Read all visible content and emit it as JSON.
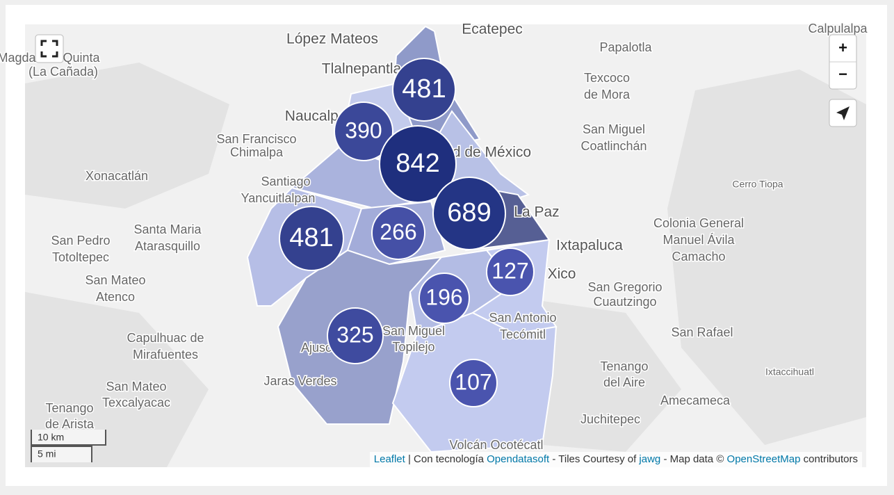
{
  "places": [
    "López Mateos",
    "Ecatepec",
    "Calpulalpa",
    "Papalotla",
    "Magdalena Quinta",
    "(La Cañada)",
    "Tlalnepantla",
    "Texcoco",
    "de Mora",
    "Naucalpan",
    "San Francisco",
    "Chimalpa",
    "San Miguel",
    "Coatlinchán",
    "Xonacatlán",
    "Ciudad de México",
    "Santiago",
    "Yancuitlalpan",
    "Cerro Tiopa",
    "La Paz",
    "Santa Maria",
    "Atarasquillo",
    "Colonia General",
    "Manuel Ávila",
    "Camacho",
    "San Pedro",
    "Totoltepec",
    "Ixtapaluca",
    "San Mateo",
    "Atenco",
    "Xico",
    "San Gregorio",
    "Cuautzingo",
    "Capulhuac de",
    "Mirafuentes",
    "San Antonio",
    "Tecómitl",
    "San Rafael",
    "San Miguel",
    "Topilejo",
    "Ajusco",
    "Ixtaccihuatl",
    "Jaras Verdes",
    "Tenango",
    "del Aire",
    "San Mateo",
    "Texcalyacac",
    "Tenango",
    "de Arista",
    "Amecameca",
    "Juchitepec",
    "Volcán Ocotécatl"
  ],
  "clusters": [
    481,
    390,
    842,
    689,
    481,
    266,
    196,
    127,
    325,
    107
  ],
  "controls": {
    "zoom_in": "+",
    "zoom_out": "−"
  },
  "scale": {
    "metric": "10 km",
    "imperial": "5 mi"
  },
  "attribution": {
    "leaflet": "Leaflet",
    "sep1": " | Con tecnología ",
    "ods": "Opendatasoft",
    "sep2": " - Tiles Courtesy of ",
    "jawg": "jawg",
    "sep3": " - Map data © ",
    "osm": "OpenStreetMap",
    "sep4": " contributors"
  }
}
